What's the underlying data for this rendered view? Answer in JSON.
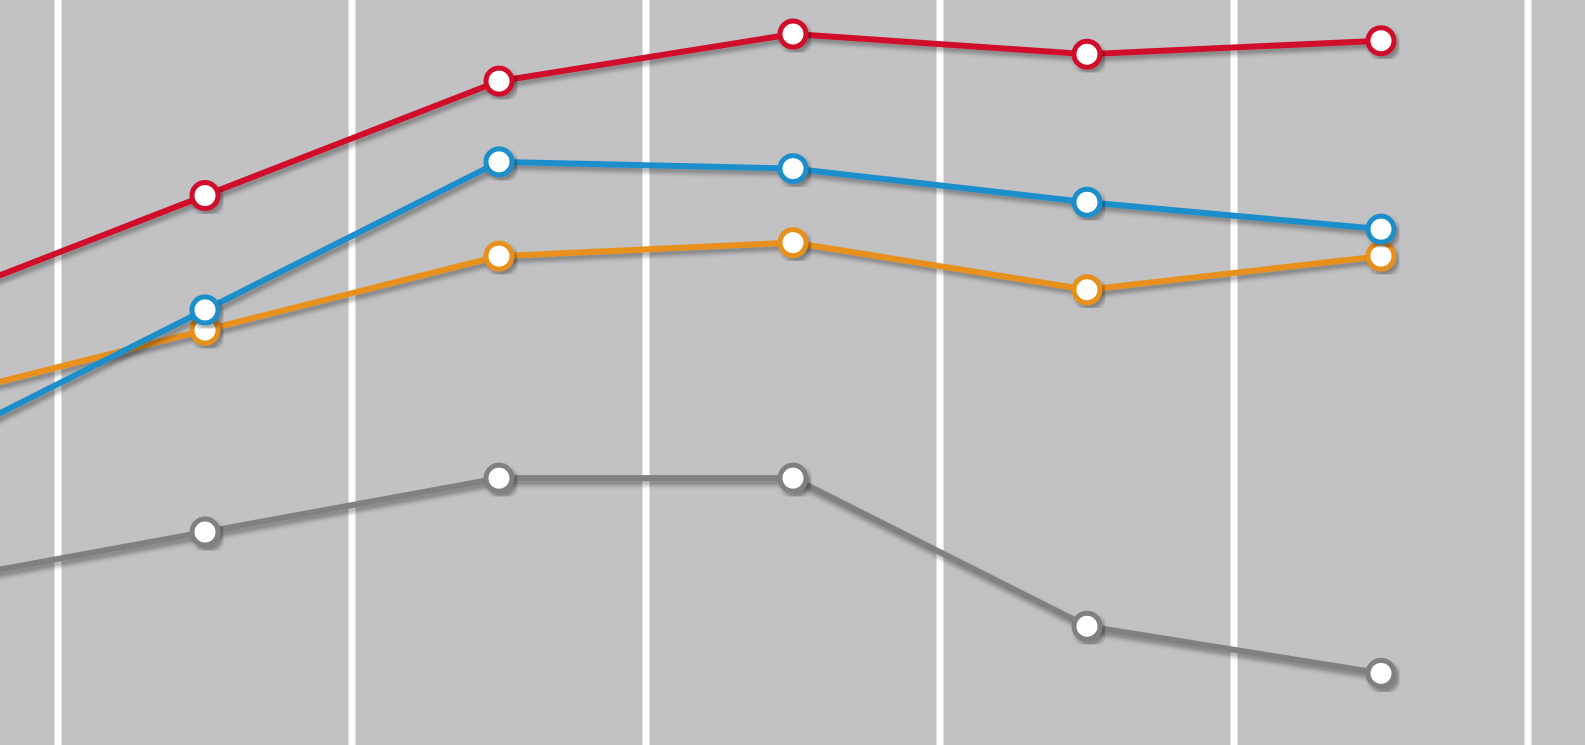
{
  "colors": {
    "background": "#c2c2c4",
    "gridline": "#ffffff",
    "point_fill": "#ffffff"
  },
  "chart_data": {
    "type": "line",
    "title": "",
    "xlabel": "",
    "ylabel": "",
    "x": [
      1,
      2,
      3,
      4,
      5
    ],
    "ylim": [
      0,
      100
    ],
    "grid": "vertical",
    "series": [
      {
        "color": "#d0102a",
        "values": [
          76,
          93,
          100,
          97,
          99
        ]
      },
      {
        "color": "#1b8fcb",
        "values": [
          59,
          81,
          80,
          75,
          71
        ]
      },
      {
        "color": "#e8901c",
        "values": [
          56,
          67,
          69,
          62,
          67
        ]
      },
      {
        "color": "#808080",
        "values": [
          26,
          34,
          34,
          12,
          5
        ]
      }
    ]
  }
}
